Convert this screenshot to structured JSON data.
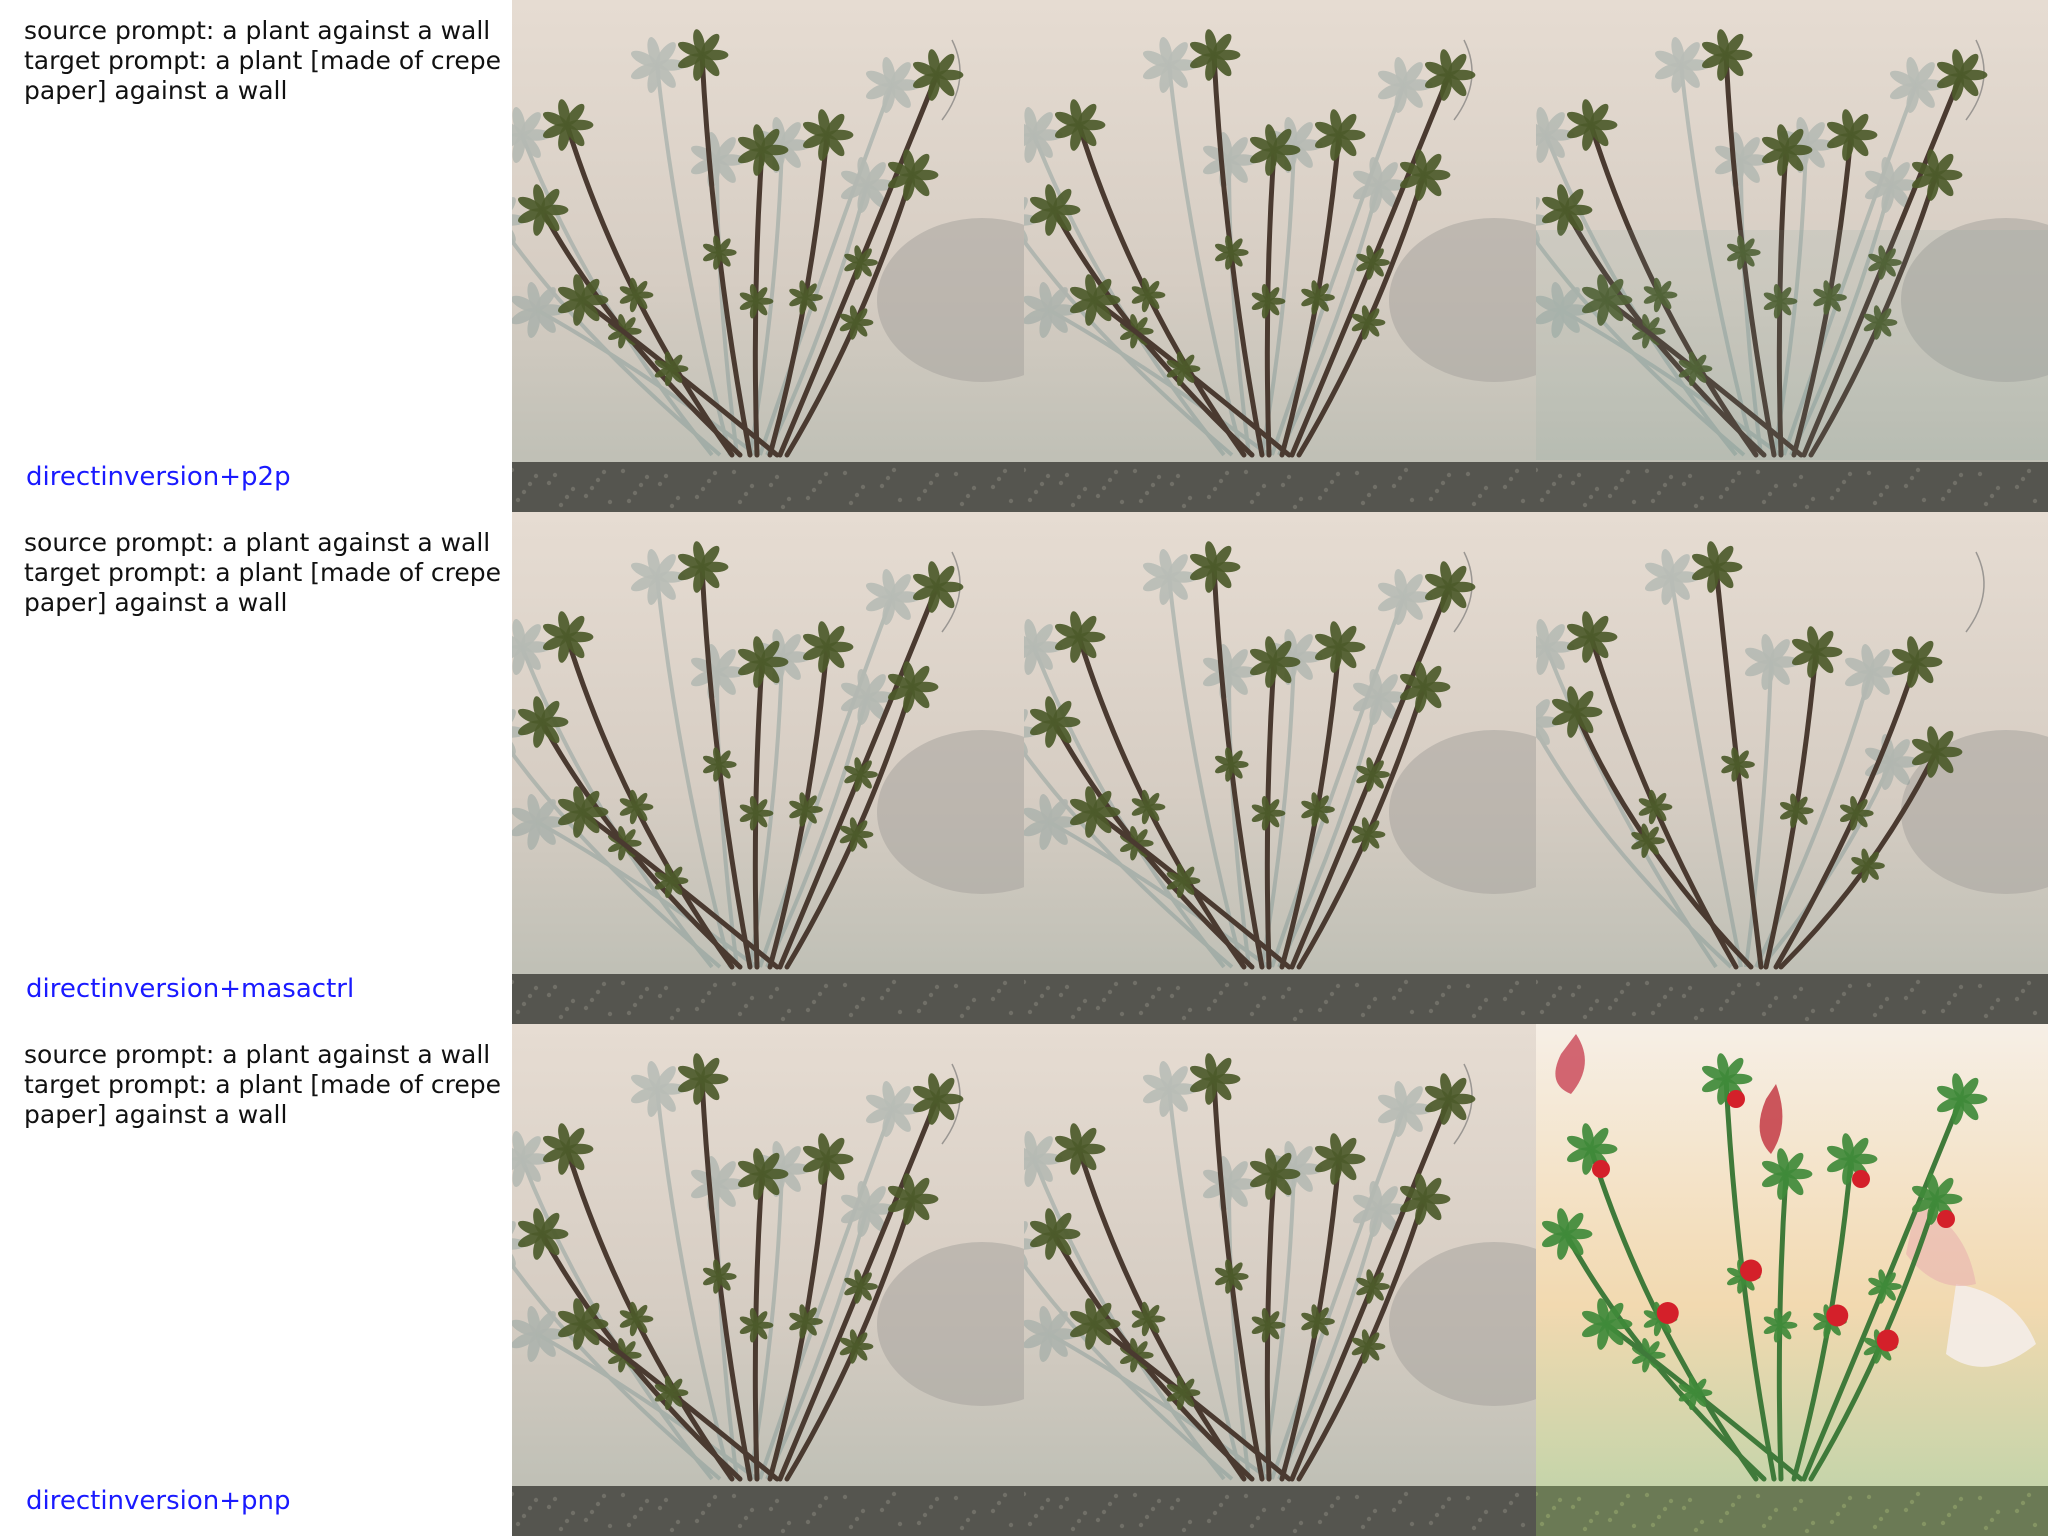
{
  "rows": [
    {
      "source_prompt": "source prompt: a plant against a wall",
      "target_prompt": "target prompt: a plant [made of crepe paper] against a wall",
      "method": "directinversion+p2p",
      "tiles": [
        "source",
        "reconstruction",
        "edited"
      ]
    },
    {
      "source_prompt": "source prompt: a plant against a wall",
      "target_prompt": "target prompt: a plant [made of crepe paper] against a wall",
      "method": "directinversion+masactrl",
      "tiles": [
        "source",
        "reconstruction",
        "edited"
      ]
    },
    {
      "source_prompt": "source prompt: a plant against a wall",
      "target_prompt": "target prompt: a plant [made of crepe paper] against a wall",
      "method": "directinversion+pnp",
      "tiles": [
        "source",
        "reconstruction",
        "edited-colorful"
      ]
    }
  ],
  "colors": {
    "method_label": "#1a1aff",
    "prompt_text": "#111111",
    "wall_top": "#e6dcd2",
    "wall_bottom": "#b9bcb2",
    "ground": "#55554f",
    "stem": "#4a3a30",
    "leaf": "#4c5a2a",
    "shadow": "#6b8a8a",
    "crepe_stem": "#3f7a3a",
    "crepe_flower": "#d4202a",
    "crepe_wall": "#f2d9b0"
  }
}
